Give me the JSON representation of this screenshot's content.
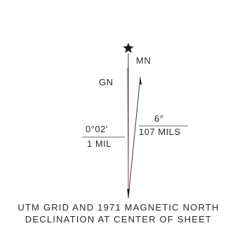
{
  "diagram": {
    "labels": {
      "grid_north": "GN",
      "magnetic_north": "MN",
      "magnetic_angle_deg": "6°",
      "magnetic_angle_mils": "107 MILS",
      "grid_angle_deg": "0°02′",
      "grid_angle_mils": "1 MIL"
    },
    "caption": {
      "line1": "UTM GRID AND 1971 MAGNETIC NORTH",
      "line2": "DECLINATION AT CENTER OF SHEET"
    },
    "colors": {
      "true_north_line": "#3a3a3a",
      "grid_north_line": "#b0566a",
      "magnetic_north_line": "#3a3a3a",
      "star": "#1a1a1a"
    }
  }
}
